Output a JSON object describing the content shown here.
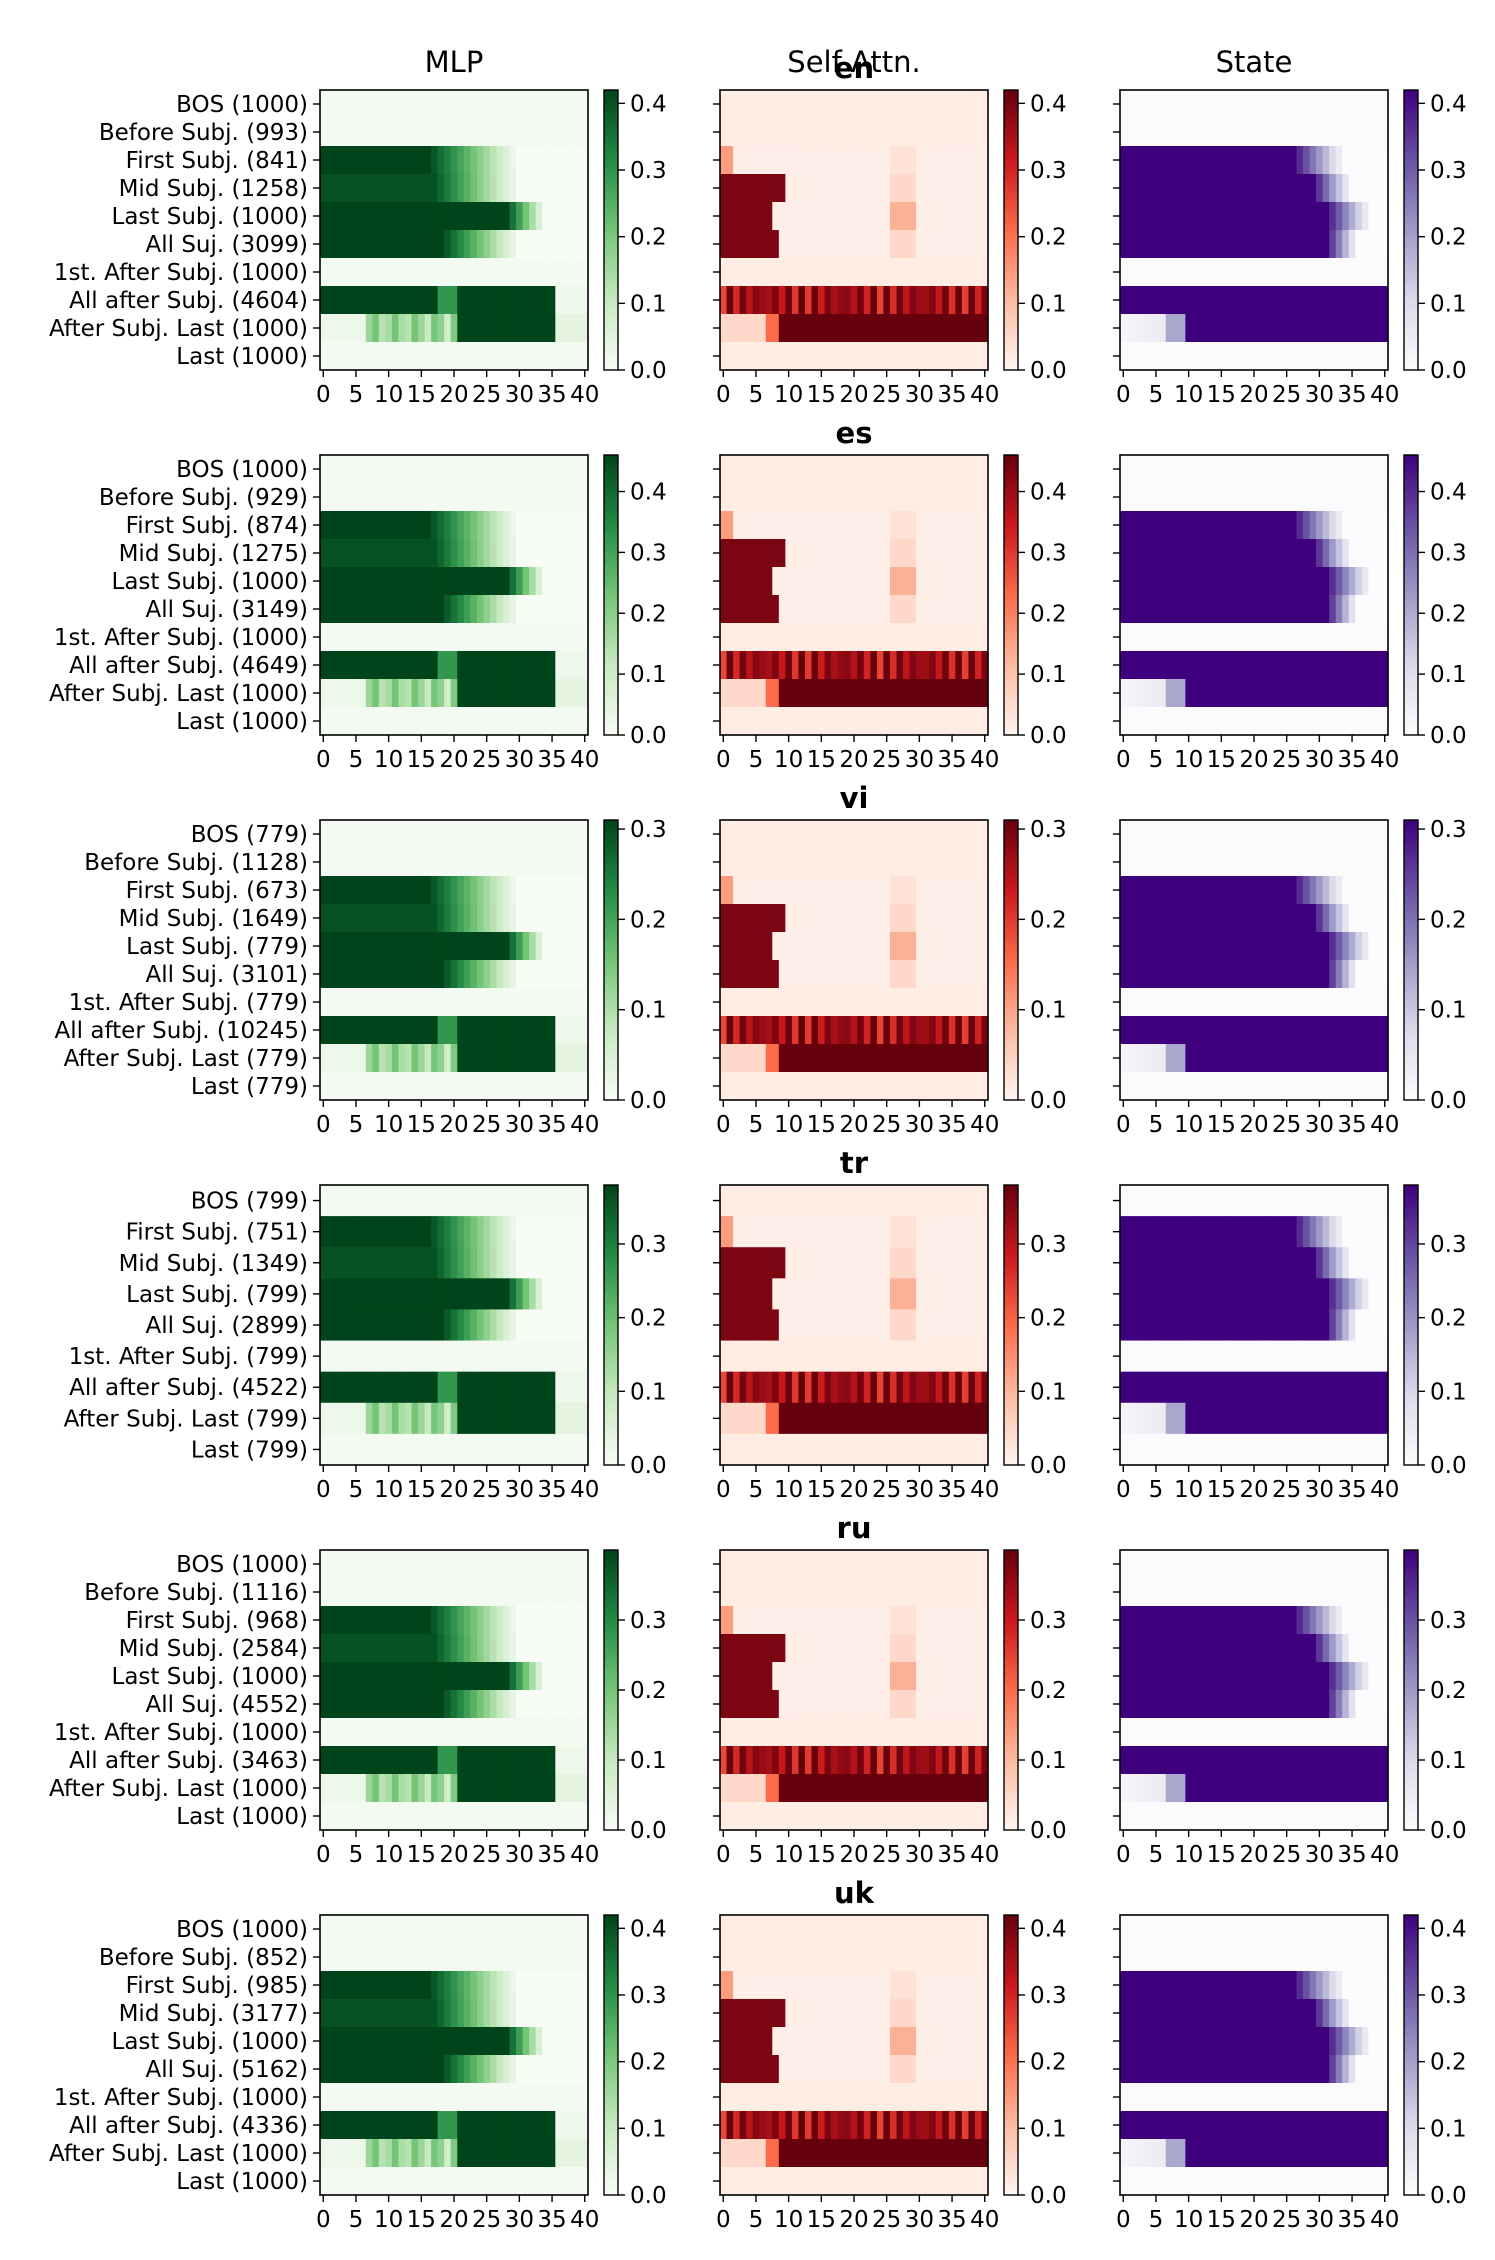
{
  "figure": {
    "column_titles": [
      "MLP",
      "Self Attn.",
      "State"
    ]
  },
  "colors": {
    "MLP": "#00441b",
    "Self Attn.": "#67000d",
    "State": "#3f007d"
  },
  "chart_data": {
    "type": "heatmap",
    "x_ticks": [
      0,
      5,
      10,
      15,
      20,
      25,
      30,
      35,
      40
    ],
    "x_tick_labels": [
      "0",
      "5",
      "10",
      "15",
      "20",
      "25",
      "30",
      "35",
      "40"
    ],
    "n_layers": 41,
    "panels": [
      {
        "language": "en",
        "rows": [
          "BOS (1000)",
          "Before Subj. (993)",
          "First Subj. (841)",
          "Mid Subj. (1258)",
          "Last Subj. (1000)",
          "All Suj. (3099)",
          "1st. After Subj. (1000)",
          "All after Subj. (4604)",
          "After Subj. Last (1000)",
          "Last (1000)"
        ],
        "colorbar": {
          "ticks": [
            "0.0",
            "0.1",
            "0.2",
            "0.3",
            "0.4"
          ],
          "max": 0.42
        }
      },
      {
        "language": "es",
        "rows": [
          "BOS (1000)",
          "Before Subj. (929)",
          "First Subj. (874)",
          "Mid Subj. (1275)",
          "Last Subj. (1000)",
          "All Suj. (3149)",
          "1st. After Subj. (1000)",
          "All after Subj. (4649)",
          "After Subj. Last (1000)",
          "Last (1000)"
        ],
        "colorbar": {
          "ticks": [
            "0.0",
            "0.1",
            "0.2",
            "0.3",
            "0.4"
          ],
          "max": 0.46
        }
      },
      {
        "language": "vi",
        "rows": [
          "BOS (779)",
          "Before Subj. (1128)",
          "First Subj. (673)",
          "Mid Subj. (1649)",
          "Last Subj. (779)",
          "All Suj. (3101)",
          "1st. After Subj. (779)",
          "All after Subj. (10245)",
          "After Subj. Last (779)",
          "Last (779)"
        ],
        "colorbar": {
          "ticks": [
            "0.0",
            "0.1",
            "0.2",
            "0.3"
          ],
          "max": 0.31
        }
      },
      {
        "language": "tr",
        "rows": [
          "BOS (799)",
          "First Subj. (751)",
          "Mid Subj. (1349)",
          "Last Subj. (799)",
          "All Suj. (2899)",
          "1st. After Subj. (799)",
          "All after Subj. (4522)",
          "After Subj. Last (799)",
          "Last (799)"
        ],
        "colorbar": {
          "ticks": [
            "0.0",
            "0.1",
            "0.2",
            "0.3"
          ],
          "max": 0.38
        }
      },
      {
        "language": "ru",
        "rows": [
          "BOS (1000)",
          "Before Subj. (1116)",
          "First Subj. (968)",
          "Mid Subj. (2584)",
          "Last Subj. (1000)",
          "All Suj. (4552)",
          "1st. After Subj. (1000)",
          "All after Subj. (3463)",
          "After Subj. Last (1000)",
          "Last (1000)"
        ],
        "colorbar": {
          "ticks": [
            "0.0",
            "0.1",
            "0.2",
            "0.3"
          ],
          "max": 0.4
        }
      },
      {
        "language": "uk",
        "rows": [
          "BOS (1000)",
          "Before Subj. (852)",
          "First Subj. (985)",
          "Mid Subj. (3177)",
          "Last Subj. (1000)",
          "All Suj. (5162)",
          "1st. After Subj. (1000)",
          "All after Subj. (4336)",
          "After Subj. Last (1000)",
          "Last (1000)"
        ],
        "colorbar": {
          "ticks": [
            "0.0",
            "0.1",
            "0.2",
            "0.3",
            "0.4"
          ],
          "max": 0.42
        }
      }
    ]
  }
}
